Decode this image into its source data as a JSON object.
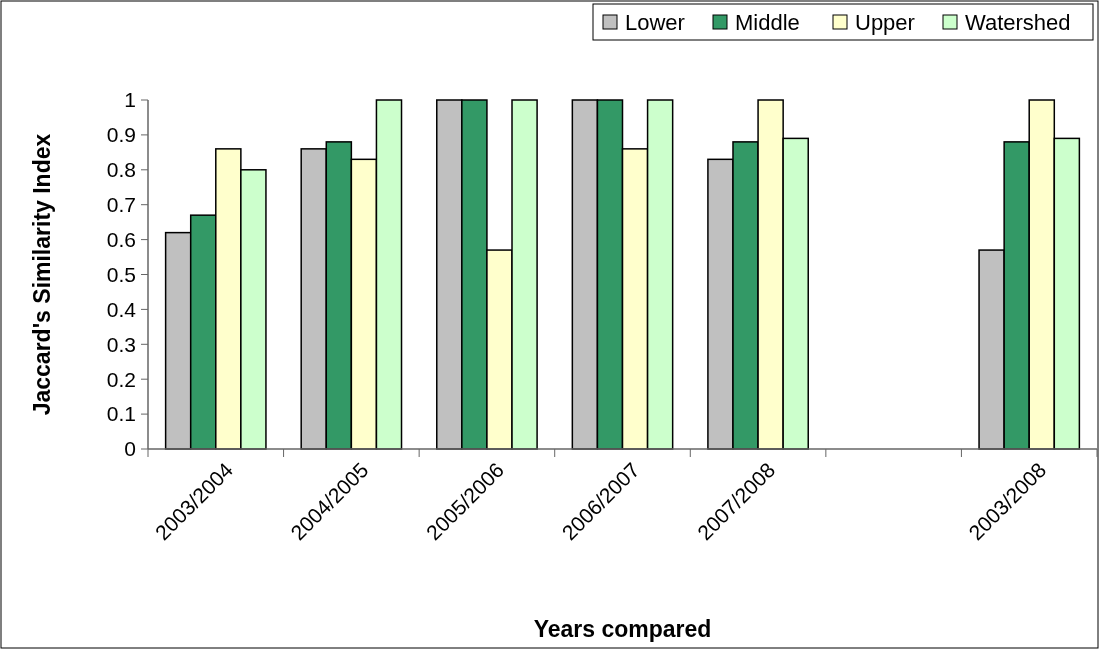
{
  "chart_data": {
    "type": "bar",
    "xlabel": "Years compared",
    "ylabel": "Jaccard's Similarity Index",
    "categories": [
      "2003/2004",
      "2004/2005",
      "2005/2006",
      "2006/2007",
      "2007/2008",
      null,
      "2003/2008"
    ],
    "series": [
      {
        "name": "Lower",
        "color": "#c0c0c0",
        "values": [
          0.62,
          0.86,
          1,
          1,
          0.83,
          null,
          0.57
        ]
      },
      {
        "name": "Middle",
        "color": "#339966",
        "values": [
          0.67,
          0.88,
          1,
          1,
          0.88,
          null,
          0.88
        ]
      },
      {
        "name": "Upper",
        "color": "#ffffcc",
        "values": [
          0.86,
          0.83,
          0.57,
          0.86,
          1,
          null,
          1
        ]
      },
      {
        "name": "Watershed",
        "color": "#ccffcc",
        "values": [
          0.8,
          1,
          1,
          1,
          0.89,
          null,
          0.89
        ]
      }
    ],
    "ylim": [
      0,
      1
    ],
    "yticks": [
      0,
      0.1,
      0.2,
      0.3,
      0.4,
      0.5,
      0.6,
      0.7,
      0.8,
      0.9,
      1
    ],
    "grid": false,
    "legend": "top right"
  }
}
